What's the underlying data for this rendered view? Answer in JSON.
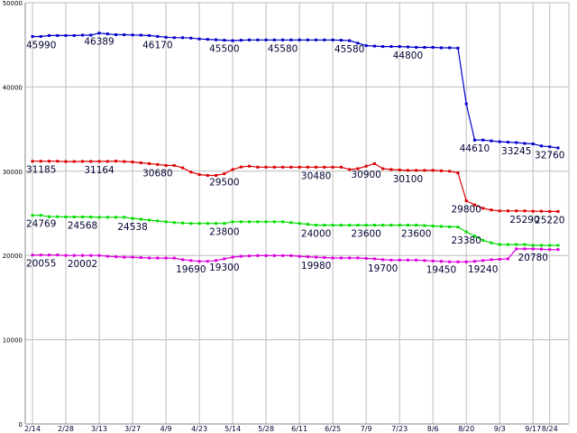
{
  "chart_data": {
    "type": "line",
    "title": "",
    "xlabel": "",
    "ylabel": "",
    "ylim": [
      0,
      50000
    ],
    "yticks": [
      "0",
      "10000",
      "20000",
      "30000",
      "40000",
      "50000"
    ],
    "grid": true,
    "x_tick_labels": [
      "2/14",
      "2/28",
      "3/13",
      "3/27",
      "4/9",
      "4/23",
      "5/14",
      "5/28",
      "6/11",
      "6/25",
      "7/9",
      "7/23",
      "8/6",
      "8/20",
      "9/3",
      "9/17",
      "8/24"
    ],
    "x_tick_index": [
      0,
      4,
      8,
      12,
      16,
      20,
      24,
      28,
      32,
      36,
      40,
      44,
      48,
      52,
      56,
      60,
      62
    ],
    "x_count": 64,
    "series": [
      {
        "color": "#0000cc",
        "values": [
          45990,
          45990,
          46100,
          46100,
          46100,
          46100,
          46150,
          46150,
          46389,
          46300,
          46200,
          46200,
          46170,
          46150,
          46100,
          46000,
          45900,
          45850,
          45850,
          45800,
          45700,
          45650,
          45600,
          45550,
          45500,
          45550,
          45580,
          45580,
          45580,
          45580,
          45580,
          45580,
          45580,
          45580,
          45580,
          45580,
          45580,
          45550,
          45500,
          45200,
          44900,
          44850,
          44800,
          44800,
          44800,
          44750,
          44700,
          44700,
          44700,
          44650,
          44650,
          44610,
          38000,
          33700,
          33700,
          33600,
          33500,
          33450,
          33400,
          33300,
          33245,
          33000,
          32900,
          32760
        ],
        "labels": [
          {
            "index": 0,
            "text": "45990"
          },
          {
            "index": 12,
            "text": "46389"
          },
          {
            "index": 24,
            "text": "46170"
          },
          {
            "index": 36,
            "text": "45500"
          },
          {
            "index": 48,
            "text": "45580"
          },
          {
            "index": 60,
            "text": "45580"
          },
          {
            "index": 71,
            "text": "44800"
          },
          {
            "index": 84,
            "text": "44610"
          },
          {
            "index": 92,
            "text": "33245"
          },
          {
            "index": 99,
            "text": "32760"
          }
        ]
      },
      {
        "color": "#dd0000",
        "values": [
          31185,
          31185,
          31185,
          31185,
          31150,
          31150,
          31164,
          31164,
          31164,
          31164,
          31200,
          31150,
          31100,
          31000,
          30900,
          30800,
          30680,
          30680,
          30400,
          29900,
          29600,
          29500,
          29500,
          29700,
          30200,
          30500,
          30600,
          30480,
          30480,
          30480,
          30480,
          30480,
          30480,
          30480,
          30480,
          30480,
          30480,
          30480,
          30200,
          30300,
          30600,
          30900,
          30300,
          30200,
          30150,
          30100,
          30100,
          30100,
          30100,
          30050,
          30000,
          29800,
          26500,
          26000,
          25600,
          25400,
          25290,
          25290,
          25290,
          25290,
          25250,
          25250,
          25220,
          25220
        ],
        "labels": [
          {
            "index": 0,
            "text": "31185"
          },
          {
            "index": 12,
            "text": "31164"
          },
          {
            "index": 24,
            "text": "30680"
          },
          {
            "index": 36,
            "text": "29500"
          },
          {
            "index": 54,
            "text": "30480"
          },
          {
            "index": 64,
            "text": "30900"
          },
          {
            "index": 72,
            "text": "30100"
          },
          {
            "index": 83,
            "text": "29800"
          },
          {
            "index": 93,
            "text": "25290"
          },
          {
            "index": 98,
            "text": "25220"
          }
        ]
      },
      {
        "color": "#00dd00",
        "values": [
          24769,
          24769,
          24600,
          24600,
          24568,
          24568,
          24568,
          24568,
          24538,
          24538,
          24538,
          24538,
          24400,
          24300,
          24200,
          24100,
          24000,
          23900,
          23850,
          23800,
          23800,
          23800,
          23800,
          23800,
          24000,
          24000,
          24000,
          24000,
          24000,
          24000,
          24000,
          23900,
          23800,
          23700,
          23600,
          23600,
          23600,
          23600,
          23600,
          23600,
          23600,
          23600,
          23600,
          23600,
          23600,
          23600,
          23600,
          23550,
          23500,
          23450,
          23400,
          23380,
          22800,
          22300,
          21800,
          21500,
          21300,
          21300,
          21300,
          21300,
          21200,
          21200,
          21200,
          21200
        ],
        "labels": [
          {
            "index": 0,
            "text": "24769"
          },
          {
            "index": 10,
            "text": "24568"
          },
          {
            "index": 19,
            "text": "24538"
          },
          {
            "index": 36,
            "text": "23800"
          },
          {
            "index": 54,
            "text": "24000"
          },
          {
            "index": 63,
            "text": "23600"
          },
          {
            "index": 73,
            "text": "23600"
          },
          {
            "index": 83,
            "text": "23380"
          }
        ]
      },
      {
        "color": "#dd00dd",
        "values": [
          20055,
          20055,
          20055,
          20055,
          20002,
          20002,
          20002,
          20002,
          20002,
          19900,
          19850,
          19800,
          19800,
          19750,
          19700,
          19690,
          19690,
          19690,
          19500,
          19400,
          19300,
          19300,
          19400,
          19600,
          19800,
          19900,
          19950,
          19980,
          19980,
          19980,
          19980,
          19980,
          19900,
          19850,
          19800,
          19750,
          19700,
          19700,
          19700,
          19700,
          19650,
          19600,
          19500,
          19450,
          19450,
          19450,
          19450,
          19400,
          19350,
          19300,
          19250,
          19240,
          19240,
          19300,
          19400,
          19500,
          19550,
          19600,
          20780,
          20780,
          20780,
          20750,
          20700,
          20700
        ],
        "labels": [
          {
            "index": 0,
            "text": "20055"
          },
          {
            "index": 10,
            "text": "20002"
          },
          {
            "index": 30,
            "text": "19690"
          },
          {
            "index": 37,
            "text": "19300"
          },
          {
            "index": 54,
            "text": "19980"
          },
          {
            "index": 66,
            "text": "19700"
          },
          {
            "index": 77,
            "text": "19450"
          },
          {
            "index": 86,
            "text": "19240"
          },
          {
            "index": 95,
            "text": "20780"
          }
        ]
      }
    ]
  }
}
